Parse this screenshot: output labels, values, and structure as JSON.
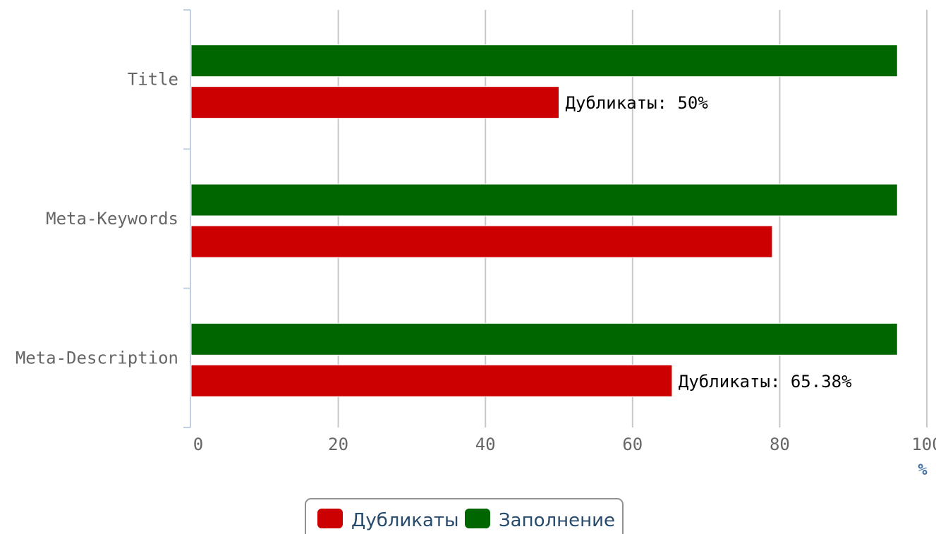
{
  "chart_data": {
    "type": "bar",
    "orientation": "horizontal",
    "categories": [
      "Title",
      "Meta-Keywords",
      "Meta-Description"
    ],
    "series": [
      {
        "name": "Заполнение",
        "color": "#006600",
        "values": [
          96,
          96,
          96
        ],
        "labels": [
          "",
          "",
          ""
        ]
      },
      {
        "name": "Дубликаты",
        "color": "#cc0000",
        "values": [
          50,
          79,
          65.38
        ],
        "labels": [
          "Дубликаты: 50%",
          "",
          "Дубликаты: 65.38%"
        ]
      }
    ],
    "xlim": [
      0,
      100
    ],
    "xticks": [
      "0",
      "20",
      "40",
      "60",
      "80",
      "100"
    ],
    "xunit": "%",
    "grid": true,
    "legend": {
      "placement": "bottom-center",
      "items": [
        {
          "name": "Дубликаты",
          "color": "#cc0000"
        },
        {
          "name": "Заполнение",
          "color": "#006600"
        }
      ]
    }
  }
}
